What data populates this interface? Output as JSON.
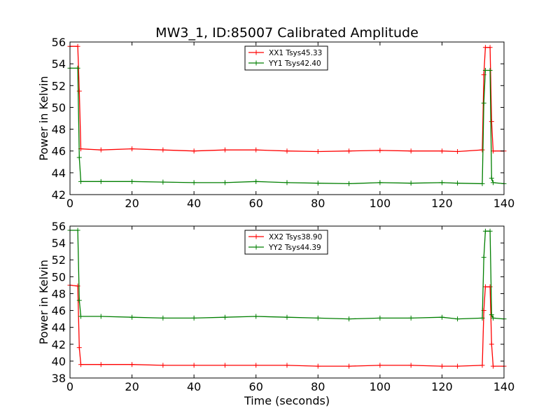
{
  "figure": {
    "title": "MW3_1, ID:85007 Calibrated Amplitude",
    "xlabel": "Time (seconds)",
    "colors": {
      "series1": "#ff0000",
      "series2": "#007f00"
    }
  },
  "chart_data": [
    {
      "type": "line",
      "title": "MW3_1, ID:85007 Calibrated Amplitude",
      "xlabel": "",
      "ylabel": "Power in Kelvin",
      "xlim": [
        0,
        140
      ],
      "ylim": [
        42,
        56
      ],
      "xticks": [
        0,
        20,
        40,
        60,
        80,
        100,
        120,
        140
      ],
      "yticks": [
        42,
        44,
        46,
        48,
        50,
        52,
        54,
        56
      ],
      "grid": false,
      "legend_position": "top-center",
      "series": [
        {
          "name": "XX1 Tsys45.33",
          "color": "#ff0000",
          "x": [
            0,
            2.5,
            3,
            3.5,
            10,
            20,
            30,
            40,
            50,
            60,
            70,
            80,
            90,
            100,
            110,
            120,
            125,
            133,
            133.5,
            134,
            135.5,
            136,
            136.5,
            140
          ],
          "y": [
            55.6,
            55.6,
            51.5,
            46.2,
            46.1,
            46.2,
            46.1,
            46.0,
            46.1,
            46.1,
            46.0,
            45.95,
            46.0,
            46.05,
            46.0,
            46.0,
            45.95,
            46.1,
            53.0,
            55.5,
            55.5,
            48.7,
            46.0,
            46.0
          ]
        },
        {
          "name": "YY1 Tsys42.40",
          "color": "#007f00",
          "x": [
            0,
            2.5,
            3,
            3.5,
            10,
            20,
            30,
            40,
            50,
            60,
            70,
            80,
            90,
            100,
            110,
            120,
            125,
            133,
            133.5,
            134,
            135.5,
            136,
            136.5,
            140
          ],
          "y": [
            53.6,
            53.6,
            45.4,
            43.2,
            43.2,
            43.2,
            43.15,
            43.1,
            43.1,
            43.2,
            43.1,
            43.05,
            43.0,
            43.1,
            43.05,
            43.1,
            43.05,
            43.0,
            50.4,
            53.4,
            53.4,
            43.5,
            43.1,
            43.0
          ]
        }
      ]
    },
    {
      "type": "line",
      "title": "",
      "xlabel": "Time (seconds)",
      "ylabel": "Power in Kelvin",
      "xlim": [
        0,
        140
      ],
      "ylim": [
        38,
        56
      ],
      "xticks": [
        0,
        20,
        40,
        60,
        80,
        100,
        120,
        140
      ],
      "yticks": [
        38,
        40,
        42,
        44,
        46,
        48,
        50,
        52,
        54,
        56
      ],
      "grid": false,
      "legend_position": "top-center",
      "series": [
        {
          "name": "XX2 Tsys38.90",
          "color": "#ff0000",
          "x": [
            0,
            2.5,
            3,
            3.5,
            10,
            20,
            30,
            40,
            50,
            60,
            70,
            80,
            90,
            100,
            110,
            120,
            125,
            133,
            133.5,
            134,
            135.5,
            136,
            136.5,
            140
          ],
          "y": [
            49.0,
            48.9,
            41.6,
            39.6,
            39.6,
            39.6,
            39.5,
            39.5,
            39.5,
            39.5,
            39.5,
            39.4,
            39.4,
            39.5,
            39.5,
            39.4,
            39.4,
            39.5,
            46.0,
            48.8,
            48.8,
            42.0,
            39.4,
            39.4
          ]
        },
        {
          "name": "YY2 Tsys44.39",
          "color": "#007f00",
          "x": [
            0,
            2.5,
            3,
            3.5,
            10,
            20,
            30,
            40,
            50,
            60,
            70,
            80,
            90,
            100,
            110,
            120,
            125,
            133,
            133.5,
            134,
            135.5,
            136,
            136.5,
            140
          ],
          "y": [
            55.5,
            55.5,
            47.2,
            45.3,
            45.3,
            45.2,
            45.1,
            45.1,
            45.2,
            45.3,
            45.2,
            45.1,
            45.0,
            45.1,
            45.1,
            45.2,
            45.0,
            45.1,
            52.3,
            55.4,
            55.4,
            45.5,
            45.1,
            45.0
          ]
        }
      ]
    }
  ]
}
